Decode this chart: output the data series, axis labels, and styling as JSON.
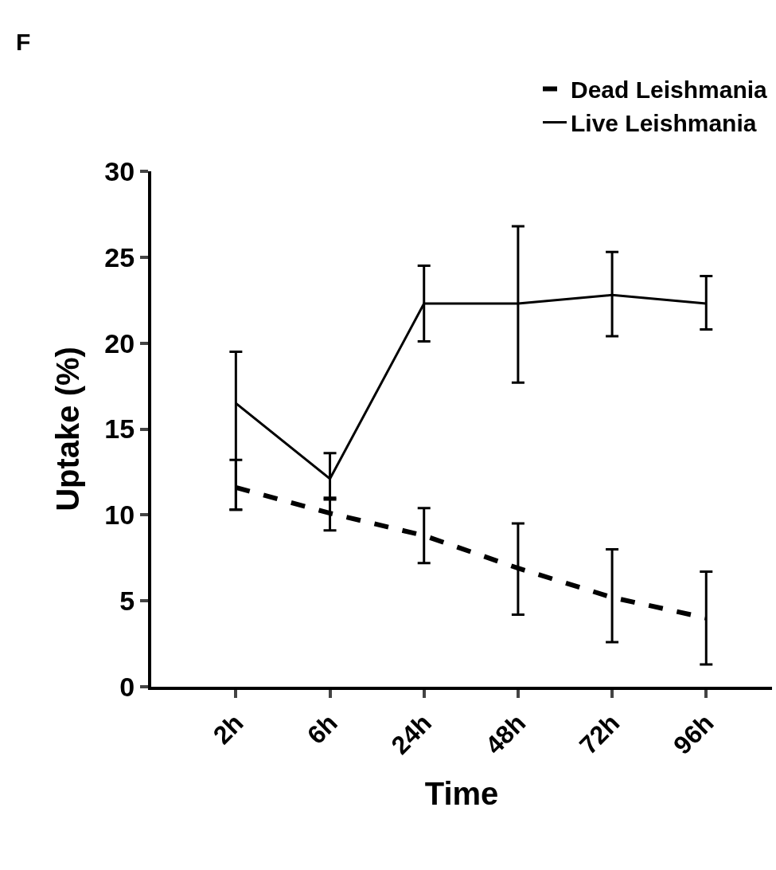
{
  "chart_data": {
    "type": "line",
    "xlabel": "Time",
    "ylabel": "Uptake (%)",
    "annotations": [
      "F"
    ],
    "categories": [
      "2h",
      "6h",
      "24h",
      "48h",
      "72h",
      "96h"
    ],
    "ylim": [
      0,
      30
    ],
    "yticks": [
      0,
      5,
      10,
      15,
      20,
      25,
      30
    ],
    "grid": false,
    "legend": "top right",
    "marker": "none",
    "series": [
      {
        "name": "Dead Leishmania",
        "color": "#000000",
        "line_style": "dashed",
        "values": [
          11.6,
          10.1,
          8.8,
          6.9,
          5.2,
          4.0
        ],
        "errors": [
          [
            10.3,
            13.2
          ],
          [
            9.1,
            11.0
          ],
          [
            7.2,
            10.4
          ],
          [
            4.2,
            9.5
          ],
          [
            2.6,
            8.0
          ],
          [
            1.3,
            6.7
          ]
        ]
      },
      {
        "name": "Live Leishmania",
        "color": "#000000",
        "line_style": "solid",
        "values": [
          16.5,
          12.1,
          22.3,
          22.3,
          22.8,
          22.3
        ],
        "errors": [
          [
            10.3,
            19.5
          ],
          [
            10.9,
            13.6
          ],
          [
            20.1,
            24.5
          ],
          [
            17.7,
            26.8
          ],
          [
            20.4,
            25.3
          ],
          [
            20.8,
            23.9
          ]
        ]
      }
    ]
  }
}
